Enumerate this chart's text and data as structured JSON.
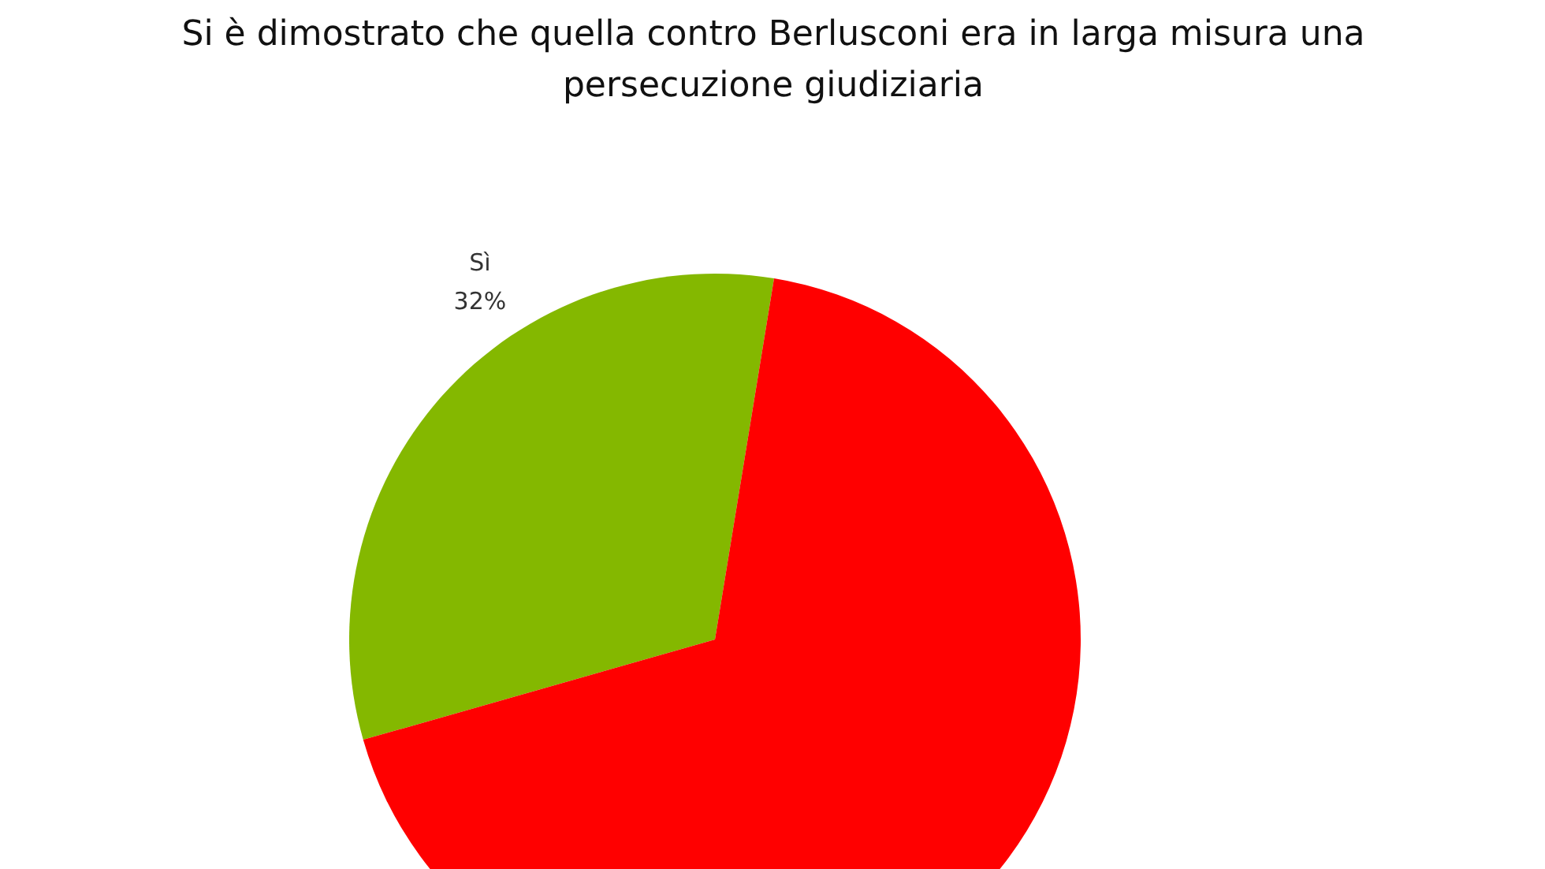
{
  "chart_data": {
    "type": "pie",
    "title": "Si è dimostrato che quella contro Berlusconi era in larga misura una persecuzione giudiziaria",
    "categories": [
      "Sì",
      null
    ],
    "values": [
      32,
      68
    ],
    "colors": [
      "#84b800",
      "#ff0000"
    ],
    "value_labels": [
      "32%",
      null
    ]
  }
}
